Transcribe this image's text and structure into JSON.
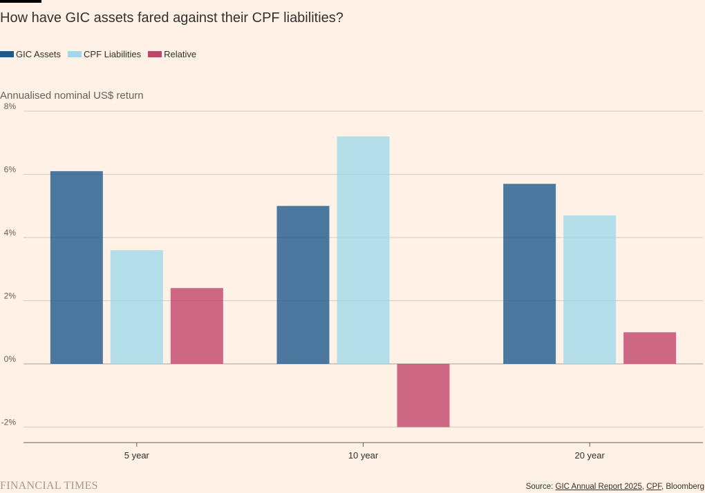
{
  "title": "How have GIC assets fared against their CPF liabilities?",
  "subtitle": "Annualised nominal US$ return",
  "legend": [
    {
      "label": "GIC Assets",
      "color": "#1f5a8f"
    },
    {
      "label": "CPF Liabilities",
      "color": "#9fd8ea"
    },
    {
      "label": "Relative",
      "color": "#c0456a"
    }
  ],
  "brand": "FINANCIAL TIMES",
  "source": {
    "prefix": "Source: ",
    "link1": "GIC Annual Report 2025",
    "sep1": ", ",
    "link2": "CPF",
    "sep2": ", ",
    "tail": "Bloomberg"
  },
  "chart_data": {
    "type": "bar",
    "categories": [
      "5 year",
      "10 year",
      "20 year"
    ],
    "series": [
      {
        "name": "GIC Assets",
        "values": [
          6.1,
          5.0,
          5.7
        ],
        "color": "#1f5a8f"
      },
      {
        "name": "CPF Liabilities",
        "values": [
          3.6,
          7.2,
          4.7
        ],
        "color": "#9fd8ea"
      },
      {
        "name": "Relative",
        "values": [
          2.4,
          -2.0,
          1.0
        ],
        "color": "#c0456a"
      }
    ],
    "yticks": [
      -2,
      0,
      2,
      4,
      6,
      8
    ],
    "ytick_labels": [
      "-2%",
      "0%",
      "2%",
      "4%",
      "6%",
      "8%"
    ],
    "ylim": [
      -2.5,
      8
    ],
    "ylabel": "Annualised nominal US$ return",
    "xlabel": "",
    "grid": true
  }
}
